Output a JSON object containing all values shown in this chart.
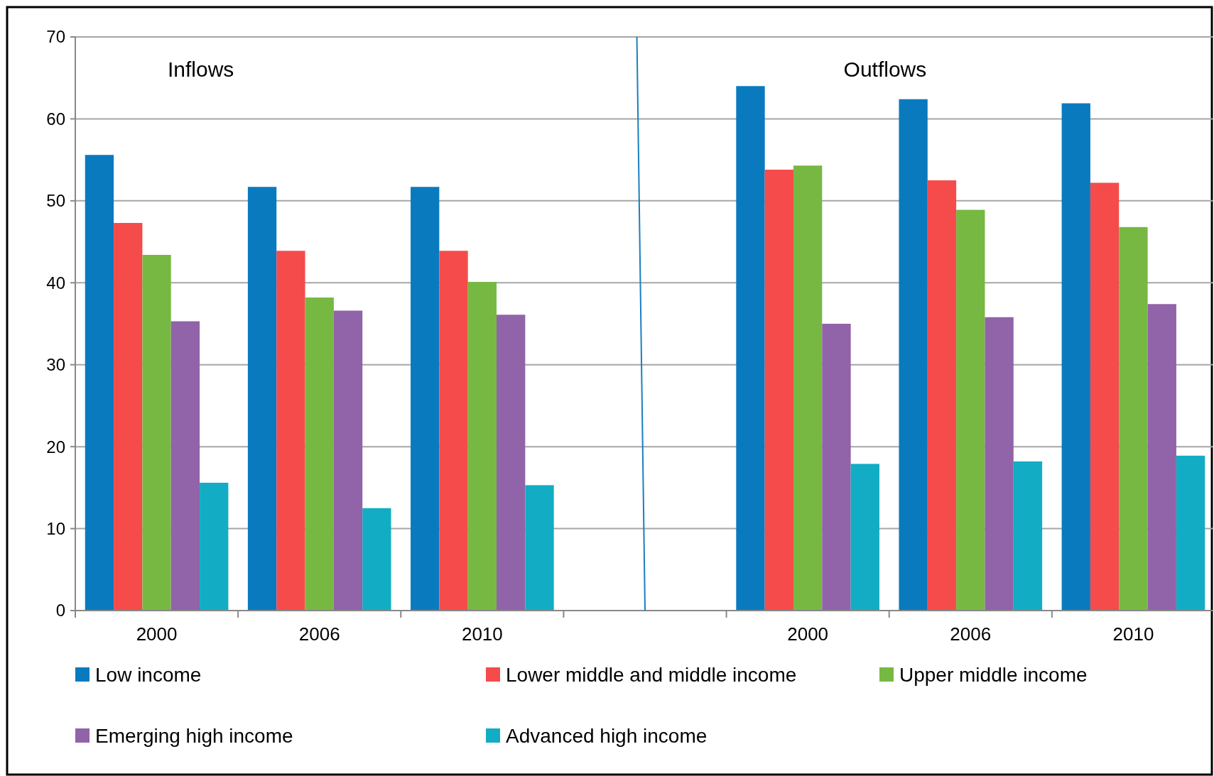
{
  "chart_data": {
    "type": "bar",
    "categories": [
      "2000",
      "2006",
      "2010",
      null,
      "2000",
      "2006",
      "2010"
    ],
    "series": [
      {
        "name": "Low income",
        "color": "#0a7abf",
        "values": [
          55.6,
          51.7,
          51.7,
          null,
          64.0,
          62.4,
          61.9
        ]
      },
      {
        "name": "Lower middle and middle  income",
        "color": "#f54b4b",
        "values": [
          47.3,
          43.9,
          43.9,
          null,
          53.8,
          52.5,
          52.2
        ]
      },
      {
        "name": "Upper middle income",
        "color": "#77b843",
        "values": [
          43.4,
          38.2,
          40.1,
          null,
          54.3,
          48.9,
          46.8
        ]
      },
      {
        "name": "Emerging high income",
        "color": "#9163a8",
        "values": [
          35.3,
          36.6,
          36.1,
          null,
          35.0,
          35.8,
          37.4
        ]
      },
      {
        "name": "Advanced high income",
        "color": "#12adc4",
        "values": [
          15.6,
          12.5,
          15.3,
          null,
          17.9,
          18.2,
          18.9
        ]
      }
    ],
    "ylim": [
      0,
      70
    ],
    "yticks": [
      0,
      10,
      20,
      30,
      40,
      50,
      60,
      70
    ],
    "grid": "y",
    "legend": "bottom",
    "annotations": [
      "Inflows",
      "Outflows"
    ]
  }
}
